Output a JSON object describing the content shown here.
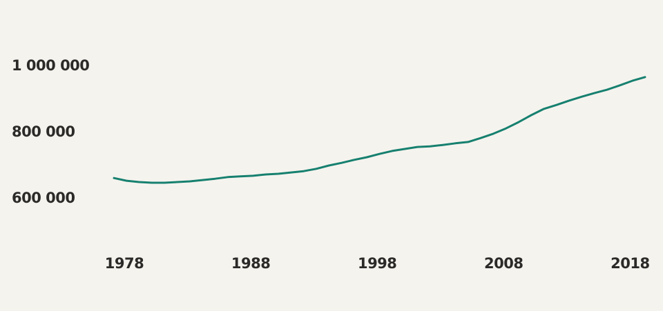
{
  "chart_data": {
    "type": "line",
    "x": [
      1978,
      1979,
      1980,
      1981,
      1982,
      1983,
      1984,
      1985,
      1986,
      1987,
      1988,
      1989,
      1990,
      1991,
      1992,
      1993,
      1994,
      1995,
      1996,
      1997,
      1998,
      1999,
      2000,
      2001,
      2002,
      2003,
      2004,
      2005,
      2006,
      2007,
      2008,
      2009,
      2010,
      2011,
      2012,
      2013,
      2014,
      2015,
      2016,
      2017,
      2018,
      2019,
      2020
    ],
    "series": [
      {
        "color": "#16806f",
        "values": [
          662000,
          654000,
          650000,
          648000,
          648000,
          650000,
          652000,
          656000,
          660000,
          665000,
          667000,
          669000,
          673000,
          675000,
          679000,
          683000,
          690000,
          700000,
          708000,
          717000,
          725000,
          735000,
          744000,
          750000,
          756000,
          758000,
          762000,
          767000,
          771000,
          783000,
          796000,
          812000,
          831000,
          852000,
          871000,
          883000,
          896000,
          908000,
          919000,
          929000,
          942000,
          956000,
          967000
        ]
      }
    ],
    "xlim": [
      1978,
      2020
    ],
    "xticks": [
      1978,
      1988,
      1998,
      2008,
      2018
    ],
    "ylim": [
      500000,
      1100000
    ],
    "yticks": [
      {
        "value": 600000,
        "label": "600 000"
      },
      {
        "value": 800000,
        "label": "800 000"
      },
      {
        "value": 1000000,
        "label": "1 000 000"
      }
    ],
    "grid": false
  }
}
